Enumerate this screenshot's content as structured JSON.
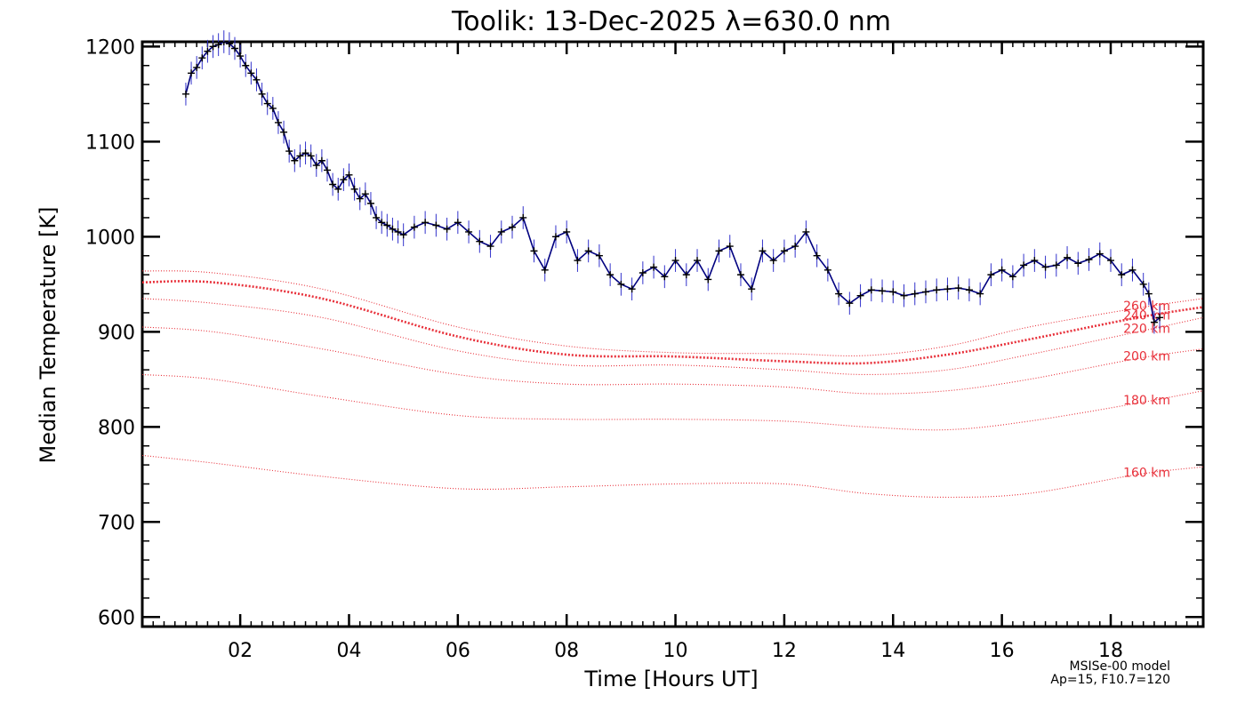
{
  "chart_data": {
    "type": "line",
    "title": "Toolik: 13-Dec-2025 λ=630.0 nm",
    "xlabel": "Time [Hours UT]",
    "ylabel": "Median Temperature [K]",
    "xlim": [
      0.2,
      19.7
    ],
    "ylim": [
      590,
      1205
    ],
    "x_ticks": [
      2,
      4,
      6,
      8,
      10,
      12,
      14,
      16,
      18
    ],
    "x_tick_labels": [
      "02",
      "04",
      "06",
      "08",
      "10",
      "12",
      "14",
      "16",
      "18"
    ],
    "y_ticks": [
      600,
      700,
      800,
      900,
      1000,
      1100,
      1200
    ],
    "y_tick_labels": [
      "600",
      "700",
      "800",
      "900",
      "1000",
      "1100",
      "1200"
    ],
    "grid": false,
    "colors": {
      "observed_line": "#000080",
      "error_bars": "#3333cc",
      "markers": "#000000",
      "model": "#e8303a"
    },
    "series": [
      {
        "style": "observed",
        "x": [
          1.0,
          1.1,
          1.2,
          1.3,
          1.4,
          1.5,
          1.6,
          1.7,
          1.8,
          1.9,
          2.0,
          2.1,
          2.2,
          2.3,
          2.4,
          2.5,
          2.6,
          2.7,
          2.8,
          2.9,
          3.0,
          3.1,
          3.2,
          3.3,
          3.4,
          3.5,
          3.6,
          3.7,
          3.8,
          3.9,
          4.0,
          4.1,
          4.2,
          4.3,
          4.4,
          4.5,
          4.6,
          4.7,
          4.8,
          4.9,
          5.0,
          5.2,
          5.4,
          5.6,
          5.8,
          6.0,
          6.2,
          6.4,
          6.6,
          6.8,
          7.0,
          7.2,
          7.4,
          7.6,
          7.8,
          8.0,
          8.2,
          8.4,
          8.6,
          8.8,
          9.0,
          9.2,
          9.4,
          9.6,
          9.8,
          10.0,
          10.2,
          10.4,
          10.6,
          10.8,
          11.0,
          11.2,
          11.4,
          11.6,
          11.8,
          12.0,
          12.2,
          12.4,
          12.6,
          12.8,
          13.0,
          13.2,
          13.4,
          13.6,
          13.8,
          14.0,
          14.2,
          14.4,
          14.6,
          14.8,
          15.0,
          15.2,
          15.4,
          15.6,
          15.8,
          16.0,
          16.2,
          16.4,
          16.6,
          16.8,
          17.0,
          17.2,
          17.4,
          17.6,
          17.8,
          18.0,
          18.2,
          18.4,
          18.6,
          18.7,
          18.8,
          18.9
        ],
        "values": [
          1150,
          1172,
          1178,
          1188,
          1195,
          1200,
          1202,
          1205,
          1203,
          1198,
          1190,
          1180,
          1172,
          1165,
          1150,
          1140,
          1135,
          1120,
          1110,
          1090,
          1080,
          1085,
          1088,
          1085,
          1075,
          1080,
          1070,
          1055,
          1050,
          1060,
          1065,
          1050,
          1040,
          1045,
          1035,
          1020,
          1015,
          1012,
          1008,
          1005,
          1002,
          1010,
          1015,
          1012,
          1008,
          1015,
          1005,
          995,
          990,
          1005,
          1010,
          1020,
          985,
          965,
          1000,
          1005,
          975,
          985,
          980,
          960,
          950,
          945,
          962,
          968,
          958,
          975,
          960,
          975,
          955,
          985,
          990,
          960,
          945,
          985,
          975,
          985,
          990,
          1005,
          980,
          965,
          940,
          930,
          938,
          944,
          943,
          942,
          938,
          940,
          942,
          944,
          945,
          946,
          944,
          940,
          960,
          965,
          958,
          970,
          975,
          968,
          970,
          978,
          972,
          976,
          982,
          975,
          960,
          965,
          950,
          940,
          910,
          915
        ]
      }
    ],
    "model_curves": [
      {
        "label": "260 km",
        "x": [
          0.2,
          1.5,
          3.5,
          6,
          8,
          10,
          12,
          13.5,
          15,
          16.5,
          18.5,
          19.7
        ],
        "values": [
          964,
          962,
          945,
          905,
          885,
          878,
          877,
          875,
          885,
          905,
          925,
          935
        ]
      },
      {
        "label": "240 km",
        "x": [
          0.2,
          1.5,
          3.5,
          6,
          8,
          10,
          12,
          13.5,
          15,
          16.5,
          18.5,
          19.7
        ],
        "values": [
          952,
          952,
          935,
          895,
          876,
          874,
          869,
          867,
          876,
          892,
          915,
          926
        ]
      },
      {
        "label": "220 km",
        "x": [
          0.2,
          1.5,
          3.5,
          6,
          8,
          10,
          12,
          13.5,
          15,
          16.5,
          18.5,
          19.7
        ],
        "values": [
          935,
          930,
          915,
          880,
          865,
          865,
          860,
          855,
          860,
          876,
          900,
          915
        ]
      },
      {
        "label": "200 km",
        "x": [
          0.2,
          1.5,
          3.5,
          6,
          8,
          10,
          12,
          13.5,
          15,
          16.5,
          18.5,
          19.7
        ],
        "values": [
          905,
          900,
          882,
          855,
          845,
          845,
          842,
          835,
          838,
          850,
          872,
          882
        ]
      },
      {
        "label": "180 km",
        "x": [
          0.2,
          1.5,
          3.5,
          6,
          8,
          10,
          12,
          13.5,
          15,
          16.5,
          18.5,
          19.7
        ],
        "values": [
          855,
          850,
          832,
          812,
          808,
          808,
          806,
          800,
          797,
          806,
          825,
          838
        ]
      },
      {
        "label": "160 km",
        "x": [
          0.2,
          1.5,
          3.5,
          6,
          8,
          10,
          12,
          13.5,
          15,
          16.5,
          18.5,
          19.7
        ],
        "values": [
          770,
          762,
          748,
          735,
          737,
          740,
          740,
          730,
          726,
          730,
          750,
          758
        ]
      }
    ],
    "annotations": [
      "MSISe-00 model",
      "Ap=15, F10.7=120"
    ]
  }
}
